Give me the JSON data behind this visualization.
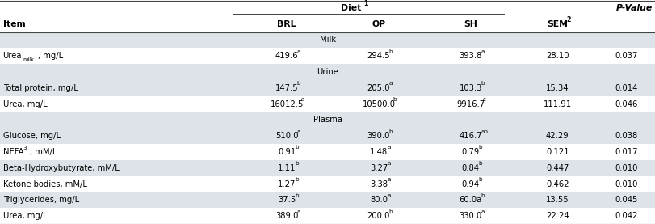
{
  "col_x_fracs": {
    "Item": 0.002,
    "BRL": 0.365,
    "OP": 0.51,
    "SH": 0.645,
    "SEM": 0.79,
    "pval": 0.91
  },
  "display_rows": [
    {
      "type": "header1"
    },
    {
      "type": "header2"
    },
    {
      "type": "section",
      "label": "Milk"
    },
    {
      "type": "data",
      "idx": 0
    },
    {
      "type": "section",
      "label": "Urine"
    },
    {
      "type": "data",
      "idx": 1
    },
    {
      "type": "data",
      "idx": 2
    },
    {
      "type": "section",
      "label": "Plasma"
    },
    {
      "type": "data",
      "idx": 3
    },
    {
      "type": "data",
      "idx": 4
    },
    {
      "type": "data",
      "idx": 5
    },
    {
      "type": "data",
      "idx": 6
    },
    {
      "type": "data",
      "idx": 7
    },
    {
      "type": "data",
      "idx": 8
    }
  ],
  "rows": [
    {
      "item_base": "Urea",
      "item_sub": "milk",
      "item_tail": ", mg/L",
      "BRL_base": "419.6",
      "BRL_sup": "a",
      "OP_base": "294.5",
      "OP_sup": "b",
      "SH_base": "393.8",
      "SH_sup": "a",
      "SEM": "28.10",
      "pval": "0.037",
      "shade": false
    },
    {
      "item_base": "Total protein, mg/L",
      "item_sub": "",
      "item_tail": "",
      "BRL_base": "147.5",
      "BRL_sup": "b",
      "OP_base": "205.0",
      "OP_sup": "a",
      "SH_base": "103.3",
      "SH_sup": "b",
      "SEM": "15.34",
      "pval": "0.014",
      "shade": true
    },
    {
      "item_base": "Urea, mg/L",
      "item_sub": "",
      "item_tail": "",
      "BRL_base": "16012.5",
      "BRL_sup": "a",
      "OP_base": "10500.0",
      "OP_sup": "b",
      "SH_base": "9916.7",
      "SH_sup": "c",
      "SEM": "111.91",
      "pval": "0.046",
      "shade": false
    },
    {
      "item_base": "Glucose, mg/L",
      "item_sub": "",
      "item_tail": "",
      "BRL_base": "510.0",
      "BRL_sup": "a",
      "OP_base": "390.0",
      "OP_sup": "b",
      "SH_base": "416.7",
      "SH_sup": "ab",
      "SEM": "42.29",
      "pval": "0.038",
      "shade": true
    },
    {
      "item_base": "NEFA",
      "item_sup_after": "3",
      "item_tail": ", mM/L",
      "item_sub": "",
      "BRL_base": "0.91",
      "BRL_sup": "b",
      "OP_base": "1.48",
      "OP_sup": "a",
      "SH_base": "0.79",
      "SH_sup": "b",
      "SEM": "0.121",
      "pval": "0.017",
      "shade": false
    },
    {
      "item_base": "Beta-Hydroxybutyrate, mM/L",
      "item_sub": "",
      "item_tail": "",
      "BRL_base": "1.11",
      "BRL_sup": "b",
      "OP_base": "3.27",
      "OP_sup": "a",
      "SH_base": "0.84",
      "SH_sup": "b",
      "SEM": "0.447",
      "pval": "0.010",
      "shade": true
    },
    {
      "item_base": "Ketone bodies, mM/L",
      "item_sub": "",
      "item_tail": "",
      "BRL_base": "1.27",
      "BRL_sup": "b",
      "OP_base": "3.38",
      "OP_sup": "a",
      "SH_base": "0.94",
      "SH_sup": "b",
      "SEM": "0.462",
      "pval": "0.010",
      "shade": false
    },
    {
      "item_base": "Triglycerides, mg/L",
      "item_sub": "",
      "item_tail": "",
      "BRL_base": "37.5",
      "BRL_sup": "b",
      "OP_base": "80.0",
      "OP_sup": "a",
      "SH_base": "60.0a",
      "SH_sup": "b",
      "SEM": "13.55",
      "pval": "0.045",
      "shade": true
    },
    {
      "item_base": "Urea, mg/L",
      "item_sub": "",
      "item_tail": "",
      "BRL_base": "389.0",
      "BRL_sup": "a",
      "OP_base": "200.0",
      "OP_sup": "b",
      "SH_base": "330.0",
      "SH_sup": "a",
      "SEM": "22.24",
      "pval": "0.042",
      "shade": false
    }
  ],
  "bg_color": "#ffffff",
  "shade_color": "#dde3e8",
  "line_color": "#444444",
  "font_size": 7.2,
  "header_font_size": 7.8,
  "sup_font_size": 5.2,
  "sub_font_size": 5.2
}
